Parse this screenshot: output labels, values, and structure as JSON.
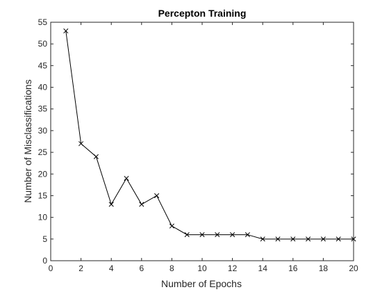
{
  "chart_data": {
    "type": "line",
    "title": "Percepton Training",
    "xlabel": "Number of Epochs",
    "ylabel": "Number of Misclassifications",
    "xlim": [
      0,
      20
    ],
    "ylim": [
      0,
      55
    ],
    "xticks": [
      0,
      2,
      4,
      6,
      8,
      10,
      12,
      14,
      16,
      18,
      20
    ],
    "yticks": [
      0,
      5,
      10,
      15,
      20,
      25,
      30,
      35,
      40,
      45,
      50,
      55
    ],
    "grid": false,
    "marker": "x",
    "line_color": "#000000",
    "series": [
      {
        "x": [
          1,
          2,
          3,
          4,
          5,
          6,
          7,
          8,
          9,
          10,
          11,
          12,
          13,
          14,
          15,
          16,
          17,
          18,
          19,
          20
        ],
        "values": [
          53,
          27,
          24,
          13,
          19,
          13,
          15,
          8,
          6,
          6,
          6,
          6,
          6,
          5,
          5,
          5,
          5,
          5,
          5,
          5
        ]
      }
    ]
  }
}
